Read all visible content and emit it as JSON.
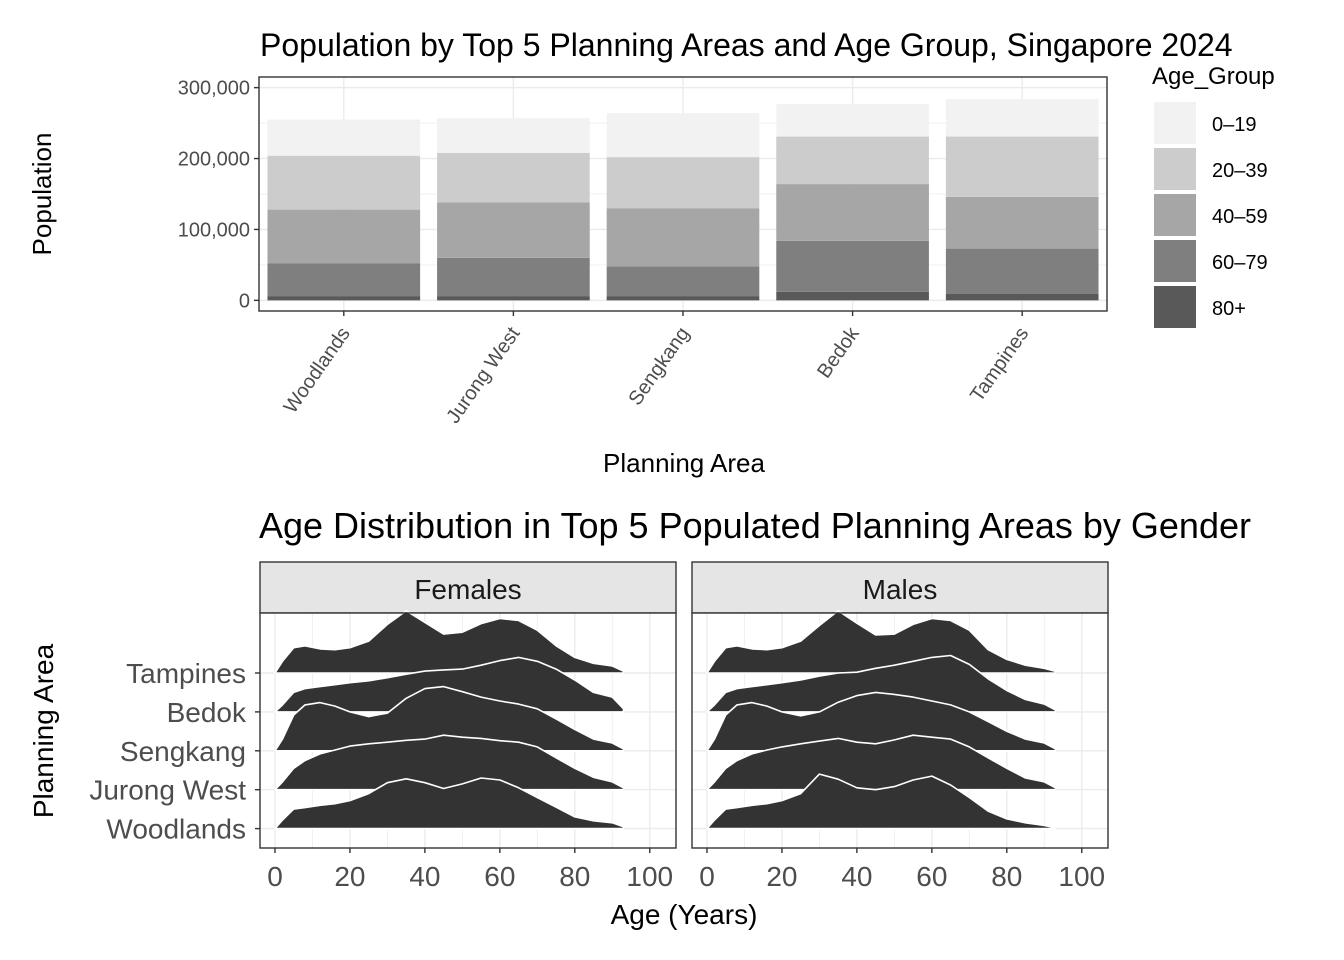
{
  "chart_data": [
    {
      "type": "bar",
      "stacked": true,
      "title": "Population by Top 5 Planning Areas and Age Group, Singapore 2024",
      "xlabel": "Planning Area",
      "ylabel": "Population",
      "categories": [
        "Woodlands",
        "Jurong West",
        "Sengkang",
        "Bedok",
        "Tampines"
      ],
      "yticks": [
        0,
        100000,
        200000,
        300000
      ],
      "ytick_labels": [
        "0",
        "100,000",
        "200,000",
        "300,000"
      ],
      "ylim": [
        -15000,
        315000
      ],
      "grid": true,
      "legend": {
        "title": "Age_Group",
        "position": "right",
        "entries": [
          "0–19",
          "20–39",
          "40–59",
          "60–79",
          "80+"
        ],
        "colors": [
          "#f2f2f2",
          "#cccccc",
          "#a6a6a6",
          "#7f7f7f",
          "#595959"
        ]
      },
      "series": [
        {
          "name": "80+",
          "values": [
            6000,
            6000,
            6000,
            12000,
            9000
          ]
        },
        {
          "name": "60–79",
          "values": [
            46000,
            54000,
            42000,
            72000,
            64000
          ]
        },
        {
          "name": "40–59",
          "values": [
            76000,
            78000,
            82000,
            80000,
            73000
          ]
        },
        {
          "name": "20–39",
          "values": [
            76000,
            70000,
            72000,
            67000,
            85000
          ]
        },
        {
          "name": "0–19",
          "values": [
            51000,
            49000,
            62000,
            46000,
            53000
          ]
        }
      ]
    },
    {
      "type": "area",
      "subtype": "ridgeline",
      "title": "Age Distribution in Top 5 Populated Planning Areas by Gender",
      "xlabel": "Age (Years)",
      "ylabel": "Planning Area",
      "xticks": [
        0,
        20,
        40,
        60,
        80,
        100
      ],
      "xlim": [
        -4,
        107
      ],
      "grid": true,
      "fill_color": "#333333",
      "categories": [
        "Woodlands",
        "Jurong West",
        "Sengkang",
        "Bedok",
        "Tampines"
      ],
      "facets": [
        {
          "name": "Females",
          "x": [
            0,
            2,
            5,
            8,
            12,
            16,
            20,
            25,
            30,
            35,
            40,
            45,
            50,
            55,
            60,
            65,
            70,
            75,
            80,
            85,
            90,
            93
          ],
          "series": [
            {
              "name": "Woodlands",
              "values": [
                0,
                0.22,
                0.5,
                0.54,
                0.6,
                0.64,
                0.72,
                0.9,
                1.18,
                1.28,
                1.18,
                1.03,
                1.15,
                1.3,
                1.25,
                1.05,
                0.8,
                0.55,
                0.3,
                0.2,
                0.15,
                0.05
              ]
            },
            {
              "name": "Jurong West",
              "values": [
                0,
                0.2,
                0.55,
                0.75,
                0.92,
                1.02,
                1.12,
                1.18,
                1.22,
                1.27,
                1.3,
                1.4,
                1.35,
                1.32,
                1.26,
                1.22,
                1.1,
                0.82,
                0.55,
                0.32,
                0.2,
                0.05
              ]
            },
            {
              "name": "Sengkang",
              "values": [
                0,
                0.3,
                0.92,
                1.18,
                1.24,
                1.15,
                1.0,
                0.88,
                0.97,
                1.35,
                1.6,
                1.65,
                1.52,
                1.38,
                1.28,
                1.2,
                1.08,
                0.82,
                0.55,
                0.3,
                0.2,
                0.05
              ]
            },
            {
              "name": "Bedok",
              "values": [
                0,
                0.18,
                0.5,
                0.6,
                0.65,
                0.7,
                0.75,
                0.8,
                0.88,
                0.97,
                1.05,
                1.08,
                1.1,
                1.2,
                1.32,
                1.4,
                1.3,
                1.1,
                0.82,
                0.5,
                0.38,
                0.08
              ]
            },
            {
              "name": "Tampines",
              "values": [
                0,
                0.3,
                0.65,
                0.7,
                0.62,
                0.6,
                0.65,
                0.82,
                1.25,
                1.6,
                1.3,
                1.0,
                1.05,
                1.27,
                1.4,
                1.35,
                1.1,
                0.7,
                0.4,
                0.25,
                0.18,
                0.05
              ]
            }
          ]
        },
        {
          "name": "Males",
          "x": [
            0,
            2,
            5,
            8,
            12,
            16,
            20,
            25,
            30,
            35,
            40,
            45,
            50,
            55,
            60,
            65,
            70,
            75,
            80,
            85,
            90,
            93
          ],
          "series": [
            {
              "name": "Woodlands",
              "values": [
                0,
                0.22,
                0.5,
                0.54,
                0.6,
                0.64,
                0.72,
                0.9,
                1.4,
                1.27,
                1.05,
                1.0,
                1.08,
                1.25,
                1.35,
                1.12,
                0.8,
                0.45,
                0.25,
                0.15,
                0.08,
                0.02
              ]
            },
            {
              "name": "Jurong West",
              "values": [
                0,
                0.2,
                0.55,
                0.75,
                0.92,
                1.02,
                1.1,
                1.18,
                1.25,
                1.32,
                1.22,
                1.18,
                1.28,
                1.4,
                1.35,
                1.3,
                1.1,
                0.82,
                0.55,
                0.3,
                0.2,
                0.05
              ]
            },
            {
              "name": "Sengkang",
              "values": [
                0,
                0.3,
                0.92,
                1.18,
                1.24,
                1.15,
                1.0,
                0.9,
                1.0,
                1.25,
                1.42,
                1.5,
                1.45,
                1.38,
                1.28,
                1.18,
                1.0,
                0.75,
                0.5,
                0.3,
                0.2,
                0.05
              ]
            },
            {
              "name": "Bedok",
              "values": [
                0,
                0.18,
                0.5,
                0.6,
                0.65,
                0.7,
                0.75,
                0.82,
                0.92,
                1.0,
                1.02,
                1.12,
                1.2,
                1.3,
                1.4,
                1.45,
                1.22,
                0.85,
                0.55,
                0.32,
                0.2,
                0.05
              ]
            },
            {
              "name": "Tampines",
              "values": [
                0,
                0.3,
                0.65,
                0.7,
                0.62,
                0.6,
                0.65,
                0.82,
                1.22,
                1.6,
                1.28,
                0.98,
                1.0,
                1.25,
                1.4,
                1.35,
                1.1,
                0.6,
                0.35,
                0.2,
                0.12,
                0.04
              ]
            }
          ]
        }
      ]
    }
  ]
}
